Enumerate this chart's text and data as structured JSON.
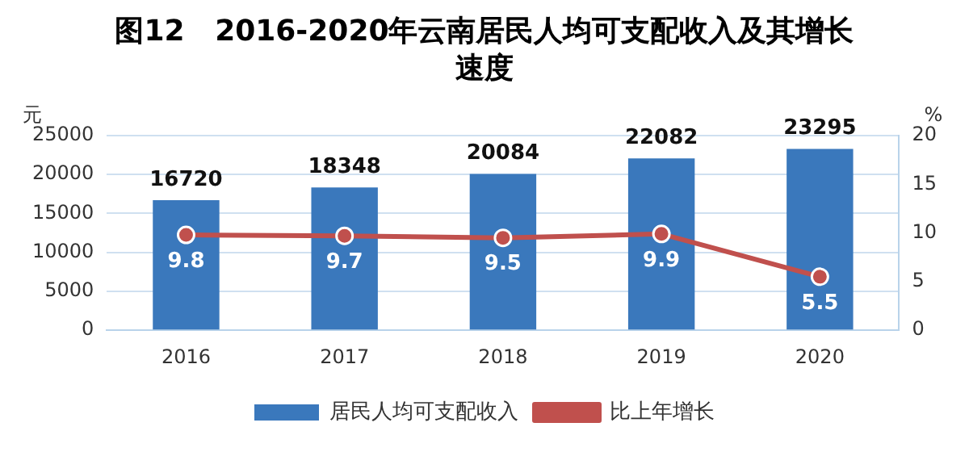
{
  "chart_data": {
    "type": "bar",
    "title": "图12   2016-2020年云南居民人均可支配收入及其增长速度",
    "ylabel": "元",
    "y2label": "%",
    "categories": [
      "2016",
      "2017",
      "2018",
      "2019",
      "2020"
    ],
    "series": [
      {
        "name": "居民人均可支配收入",
        "color": "#3a78bc",
        "values": [
          16720,
          18348,
          20084,
          22082,
          23295
        ]
      },
      {
        "name": "比上年增长",
        "type": "line",
        "axis": "y2",
        "color": "#c0504d",
        "marker": "circle",
        "values": [
          9.8,
          9.7,
          9.5,
          9.9,
          5.5
        ]
      }
    ],
    "ylim": [
      0,
      25000
    ],
    "yticks": [
      0,
      5000,
      10000,
      15000,
      20000,
      25000
    ],
    "y2lim": [
      0,
      20
    ],
    "y2ticks": [
      0,
      5,
      10,
      15,
      20
    ],
    "grid": "y",
    "legend": "bottom",
    "data_labels": true
  }
}
